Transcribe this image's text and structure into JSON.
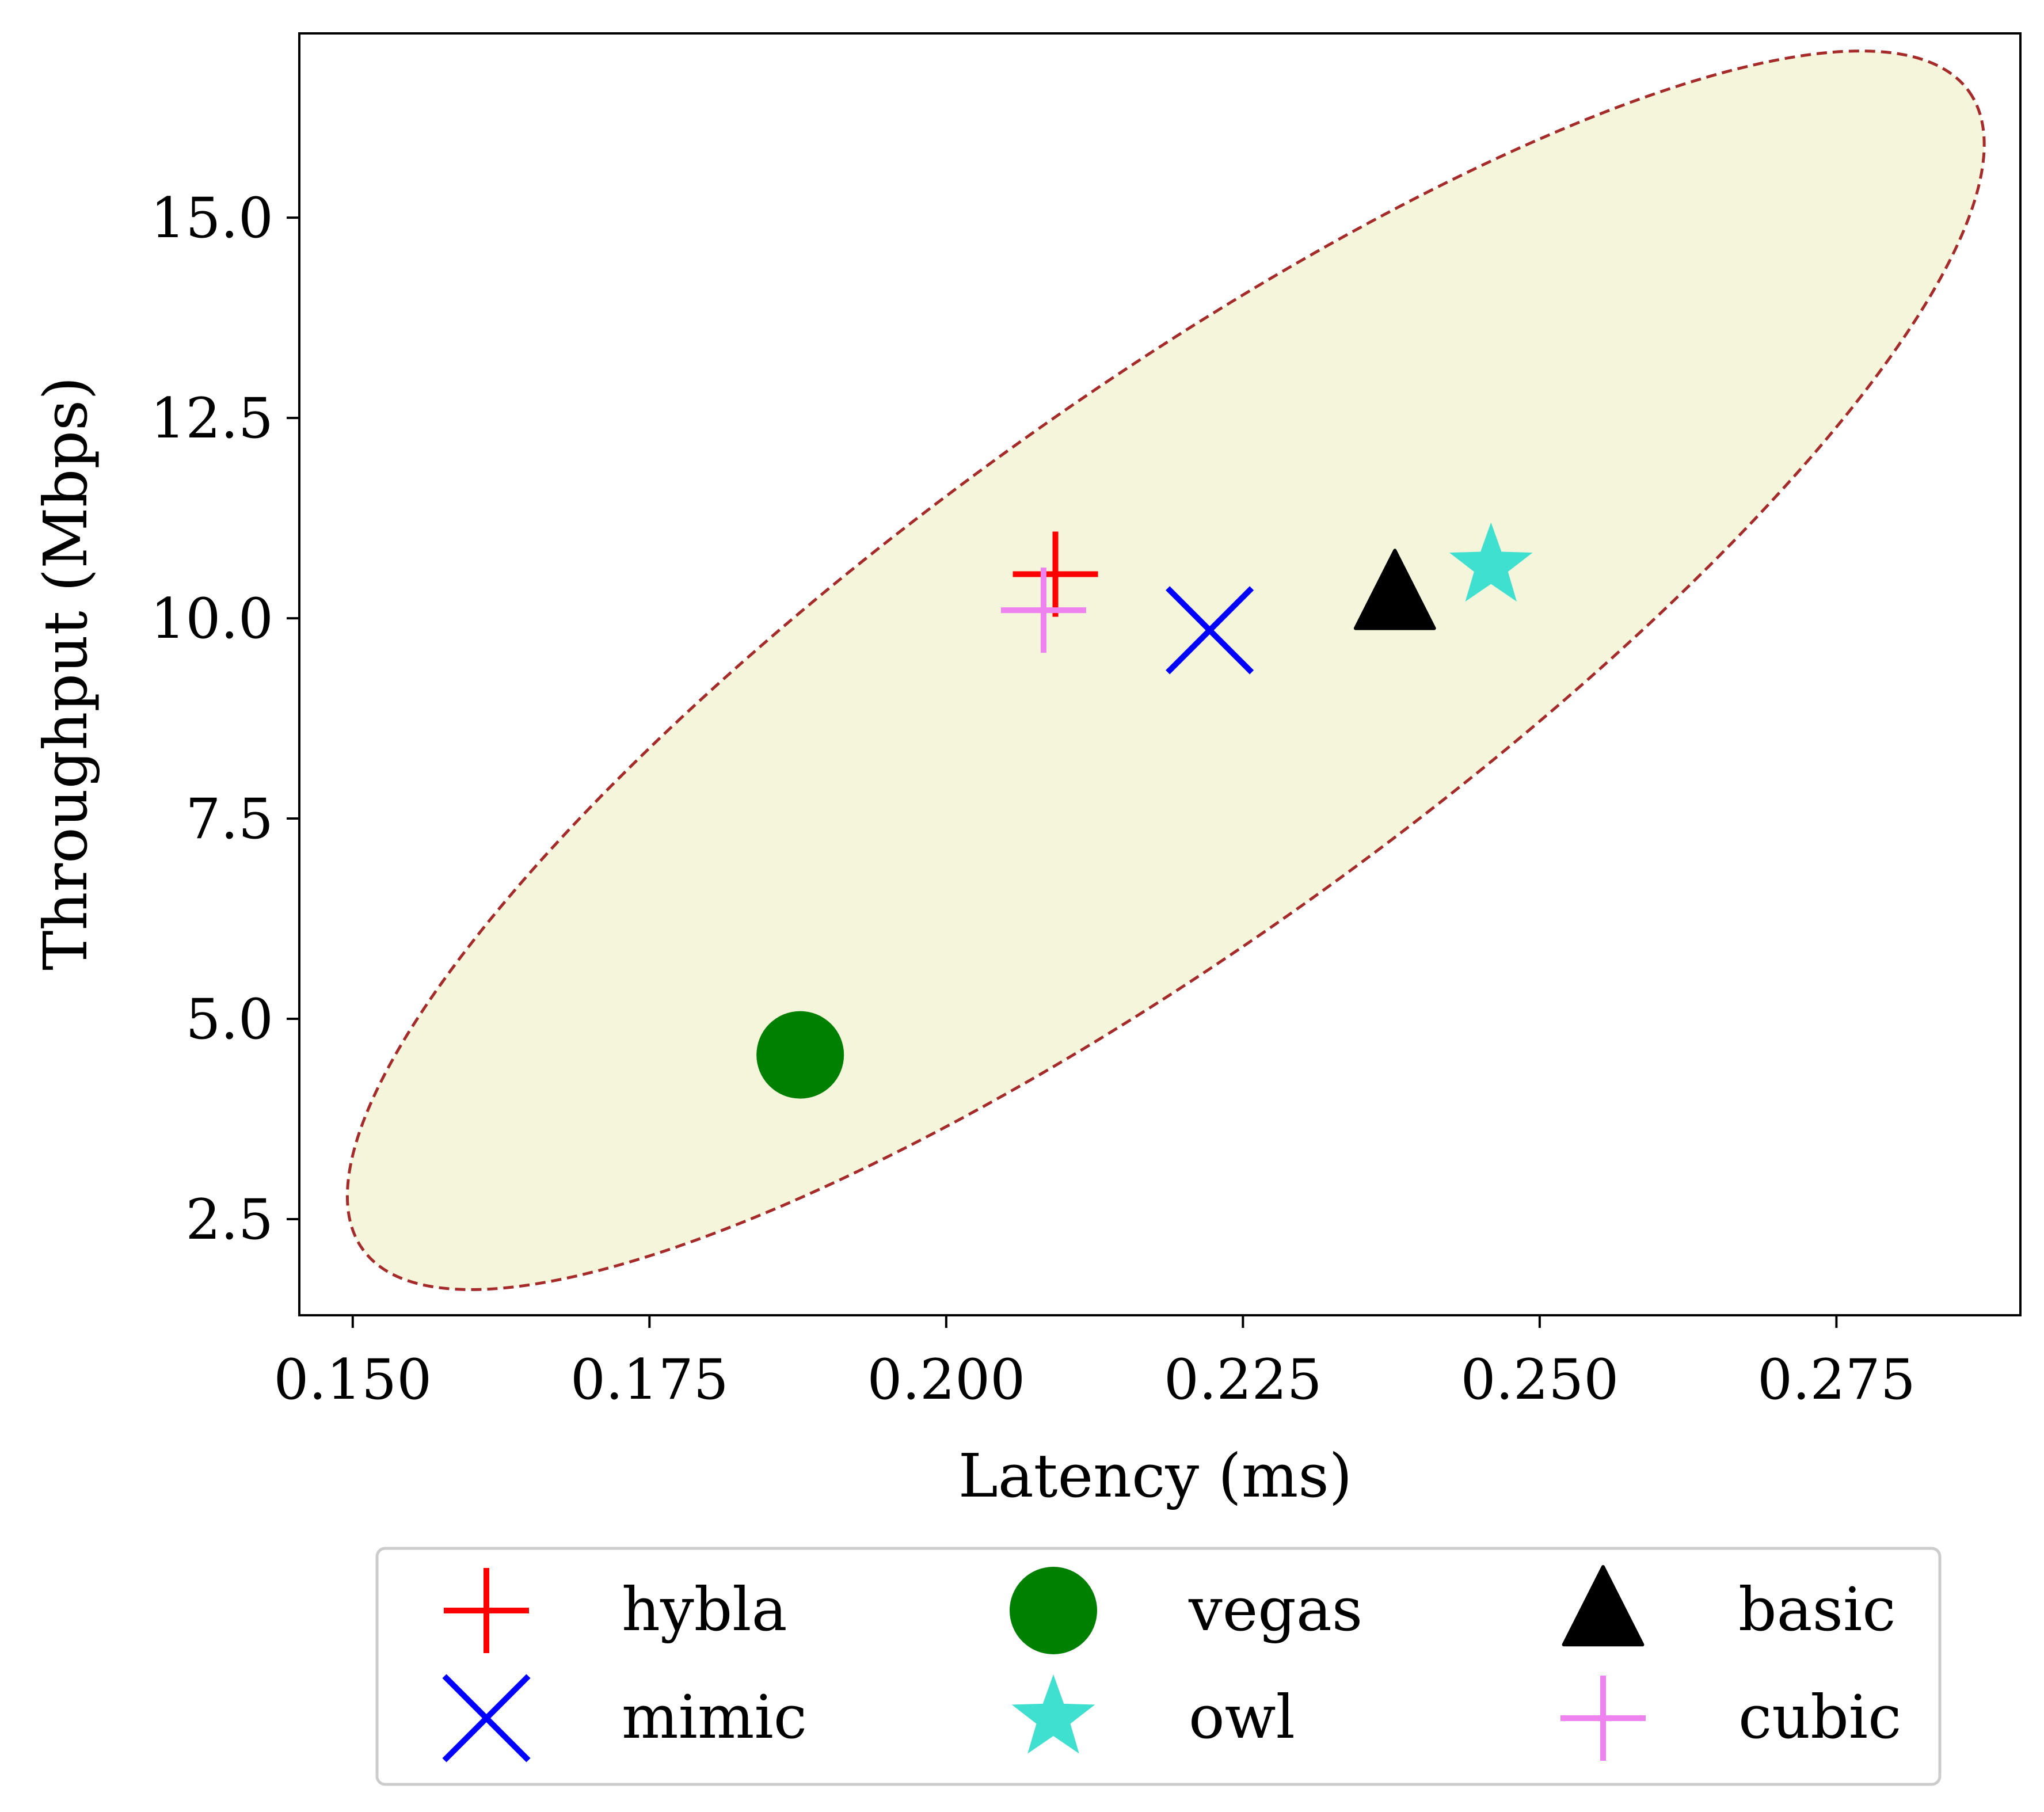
{
  "chart_data": {
    "type": "scatter",
    "xlabel": "Latency (ms)",
    "ylabel": "Throughput (Mbps)",
    "xlim": [
      0.1455,
      0.2905
    ],
    "ylim": [
      1.3,
      17.3
    ],
    "x_ticks": [
      "0.150",
      "0.175",
      "0.200",
      "0.225",
      "0.250",
      "0.275"
    ],
    "x_tick_values": [
      0.15,
      0.175,
      0.2,
      0.225,
      0.25,
      0.275
    ],
    "y_ticks": [
      "2.5",
      "5.0",
      "7.5",
      "10.0",
      "12.5",
      "15.0"
    ],
    "y_tick_values": [
      2.5,
      5.0,
      7.5,
      10.0,
      12.5,
      15.0
    ],
    "grid": false,
    "legend_position": "bottom",
    "series": [
      {
        "name": "hybla",
        "x": 0.2092,
        "y": 10.55,
        "marker": "plus",
        "color": "#ff0000"
      },
      {
        "name": "vegas",
        "x": 0.1877,
        "y": 4.55,
        "marker": "circle",
        "color": "#008000"
      },
      {
        "name": "basic",
        "x": 0.2378,
        "y": 10.3,
        "marker": "triangle",
        "color": "#000000"
      },
      {
        "name": "mimic",
        "x": 0.2222,
        "y": 9.85,
        "marker": "x",
        "color": "#0000ff"
      },
      {
        "name": "owl",
        "x": 0.2459,
        "y": 10.65,
        "marker": "star",
        "color": "#40e0d0"
      },
      {
        "name": "cubic",
        "x": 0.2082,
        "y": 10.1,
        "marker": "plus",
        "color": "#ee82ee"
      }
    ],
    "region": {
      "shape": "ellipse",
      "center": [
        0.2185,
        9.35
      ],
      "fill": "#f5f5dc",
      "edge": "#a52a2a",
      "style": "dashed"
    }
  }
}
